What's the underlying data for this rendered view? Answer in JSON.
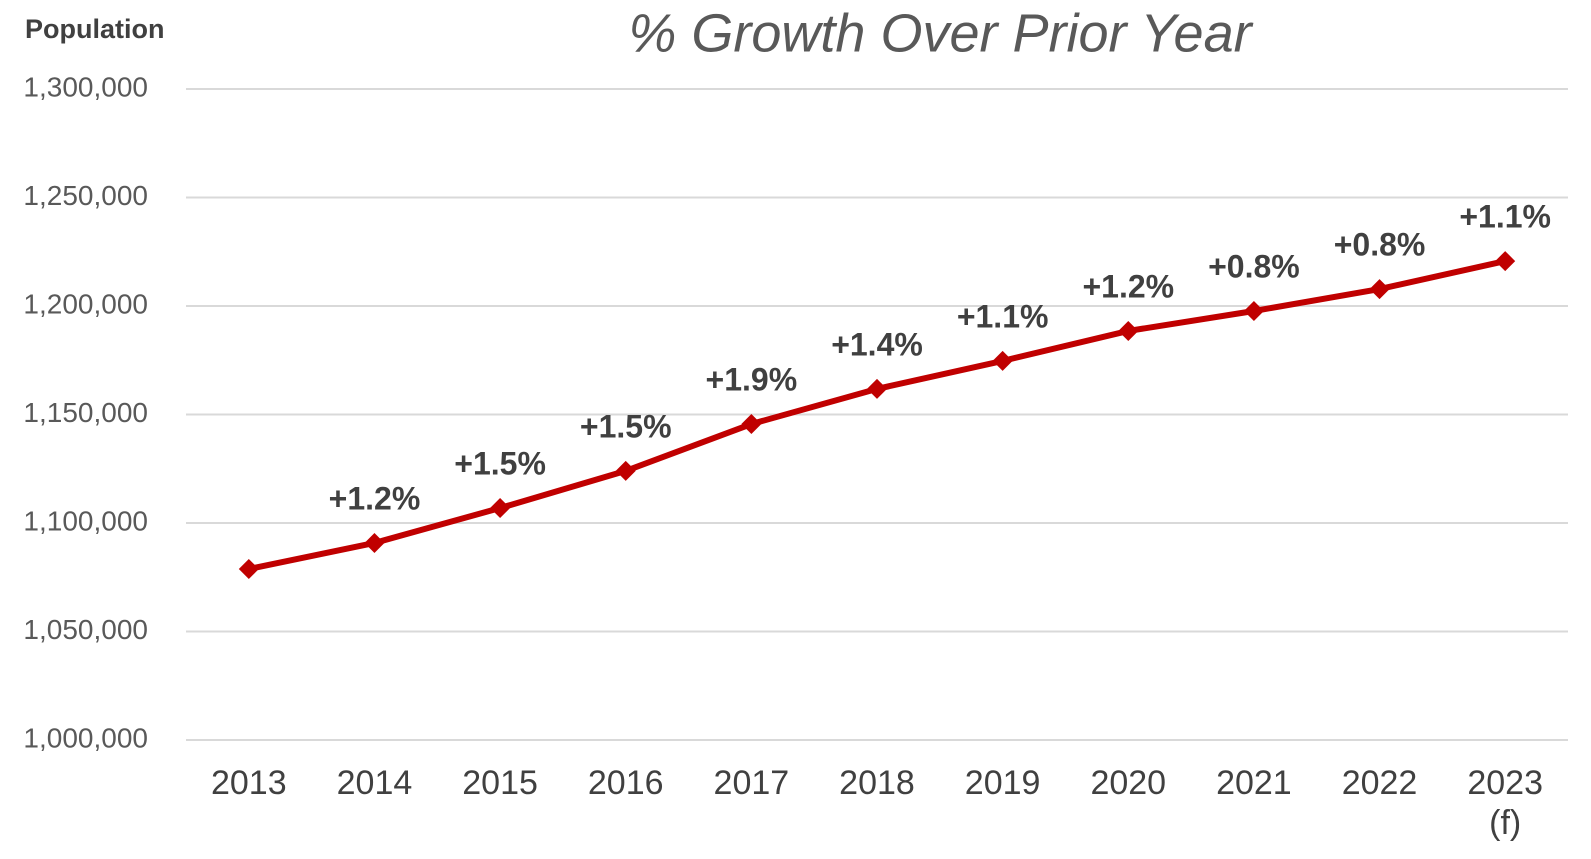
{
  "chart_data": {
    "type": "line",
    "title": "% Growth Over Prior Year",
    "y_label": "Population",
    "categories": [
      "2013",
      "2014",
      "2015",
      "2016",
      "2017",
      "2018",
      "2019",
      "2020",
      "2021",
      "2022",
      "2023\n(f)"
    ],
    "series": [
      {
        "name": "Population",
        "color": "#c00000",
        "values": [
          1078800,
          1090800,
          1106900,
          1124000,
          1145600,
          1161800,
          1174700,
          1188500,
          1197700,
          1207800,
          1220700
        ]
      }
    ],
    "annotations": [
      null,
      "+1.2%",
      "+1.5%",
      "+1.5%",
      "+1.9%",
      "+1.4%",
      "+1.1%",
      "+1.2%",
      "+0.8%",
      "+0.8%",
      "+1.1%"
    ],
    "ylim": [
      1000000,
      1300000
    ],
    "yticks": [
      {
        "value": 1000000,
        "label": "1,000,000"
      },
      {
        "value": 1050000,
        "label": "1,050,000"
      },
      {
        "value": 1100000,
        "label": "1,100,000"
      },
      {
        "value": 1150000,
        "label": "1,150,000"
      },
      {
        "value": 1200000,
        "label": "1,200,000"
      },
      {
        "value": 1250000,
        "label": "1,250,000"
      },
      {
        "value": 1300000,
        "label": "1,300,000"
      }
    ],
    "grid": true
  }
}
